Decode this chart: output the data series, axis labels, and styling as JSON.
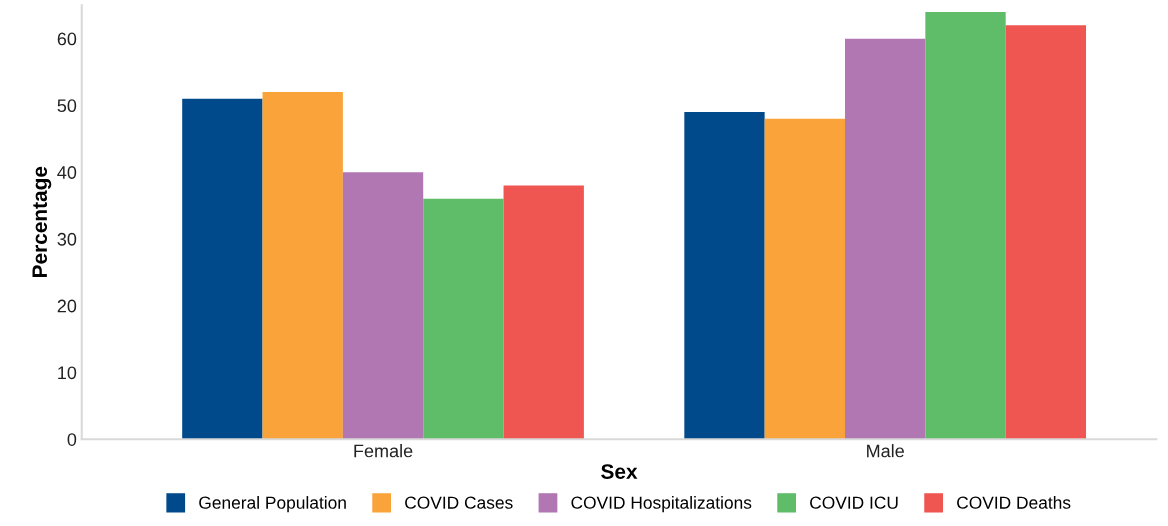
{
  "chart_data": {
    "type": "bar",
    "xlabel": "Sex",
    "ylabel": "Percentage",
    "categories": [
      "Female",
      "Male"
    ],
    "series": [
      {
        "name": "General Population",
        "color": "#004a8b",
        "values": [
          51,
          49
        ]
      },
      {
        "name": "COVID Cases",
        "color": "#f9a33a",
        "values": [
          52,
          48
        ]
      },
      {
        "name": "COVID Hospitalizations",
        "color": "#b077b2",
        "values": [
          40,
          60
        ]
      },
      {
        "name": "COVID ICU",
        "color": "#5fbd6a",
        "values": [
          36,
          64
        ]
      },
      {
        "name": "COVID Deaths",
        "color": "#ef5551",
        "values": [
          38,
          62
        ]
      }
    ],
    "ylim": [
      0,
      65
    ],
    "yticks": [
      0,
      10,
      20,
      30,
      40,
      50,
      60
    ],
    "grid": false,
    "legend": "bottom"
  }
}
